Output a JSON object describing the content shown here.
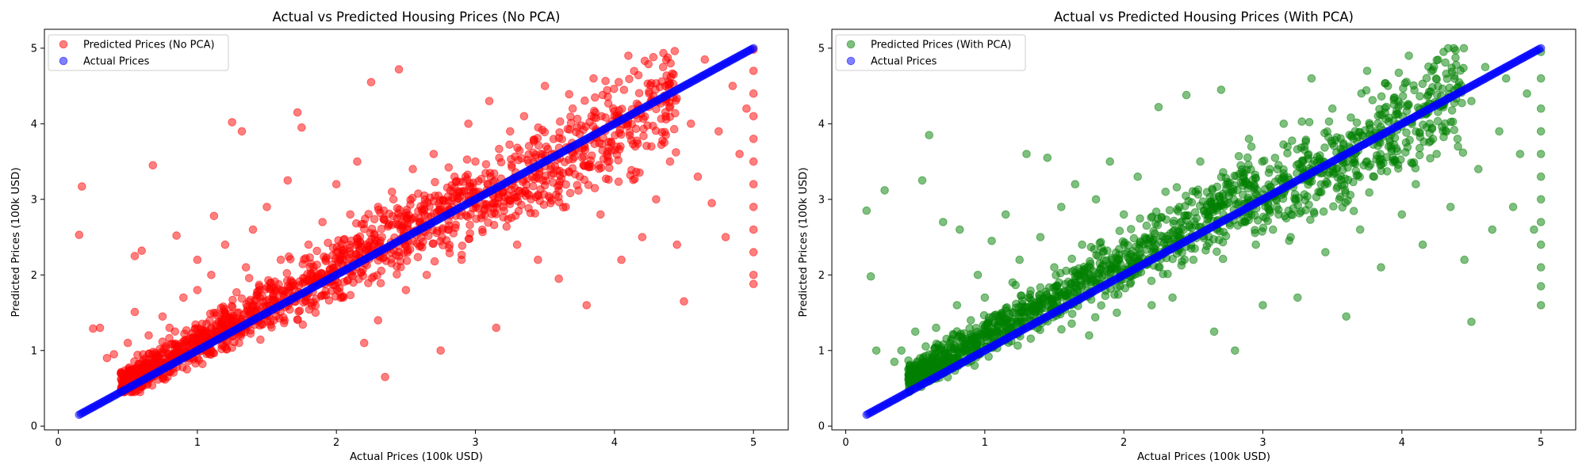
{
  "charts": [
    {
      "title": "Actual vs Predicted Housing Prices (No PCA)",
      "xlabel": "Actual Prices (100k USD)",
      "ylabel": "Predicted Prices (100k USD)",
      "x_ticks": [
        "0",
        "1",
        "2",
        "3",
        "4",
        "5"
      ],
      "y_ticks": [
        "0",
        "1",
        "2",
        "3",
        "4",
        "5"
      ],
      "legend": [
        "Predicted Prices (No PCA)",
        "Actual Prices"
      ]
    },
    {
      "title": "Actual vs Predicted Housing Prices (With PCA)",
      "xlabel": "Actual Prices (100k USD)",
      "ylabel": "Predicted Prices (100k USD)",
      "x_ticks": [
        "0",
        "1",
        "2",
        "3",
        "4",
        "5"
      ],
      "y_ticks": [
        "0",
        "1",
        "2",
        "3",
        "4",
        "5"
      ],
      "legend": [
        "Predicted Prices (With PCA)",
        "Actual Prices"
      ]
    }
  ],
  "chart_data": [
    {
      "type": "scatter",
      "title": "Actual vs Predicted Housing Prices (No PCA)",
      "xlabel": "Actual Prices (100k USD)",
      "ylabel": "Predicted Prices (100k USD)",
      "xlim": [
        -0.1,
        5.25
      ],
      "ylim": [
        -0.05,
        5.25
      ],
      "grid": false,
      "legend_position": "top-left",
      "series": [
        {
          "name": "Predicted Prices (No PCA)",
          "color": "#ff0000",
          "alpha": 0.5,
          "points": [
            [
              0.15,
              2.53
            ],
            [
              0.17,
              3.17
            ],
            [
              0.25,
              1.29
            ],
            [
              0.3,
              1.3
            ],
            [
              0.35,
              0.9
            ],
            [
              0.4,
              0.95
            ],
            [
              0.45,
              0.7
            ],
            [
              0.5,
              1.1
            ],
            [
              0.55,
              1.51
            ],
            [
              0.55,
              2.25
            ],
            [
              0.6,
              2.32
            ],
            [
              0.65,
              1.2
            ],
            [
              0.68,
              3.45
            ],
            [
              0.7,
              0.9
            ],
            [
              0.75,
              1.45
            ],
            [
              0.8,
              1.3
            ],
            [
              0.85,
              0.95
            ],
            [
              0.85,
              2.52
            ],
            [
              0.9,
              1.7
            ],
            [
              0.95,
              1.0
            ],
            [
              1.0,
              1.8
            ],
            [
              1.0,
              2.2
            ],
            [
              1.05,
              1.25
            ],
            [
              1.1,
              1.3
            ],
            [
              1.1,
              2.0
            ],
            [
              1.12,
              2.78
            ],
            [
              1.2,
              1.5
            ],
            [
              1.2,
              2.4
            ],
            [
              1.25,
              4.02
            ],
            [
              1.3,
              1.1
            ],
            [
              1.32,
              3.9
            ],
            [
              1.35,
              2.1
            ],
            [
              1.4,
              1.6
            ],
            [
              1.4,
              2.6
            ],
            [
              1.45,
              1.7
            ],
            [
              1.5,
              2.9
            ],
            [
              1.55,
              1.4
            ],
            [
              1.6,
              2.2
            ],
            [
              1.65,
              3.25
            ],
            [
              1.7,
              1.8
            ],
            [
              1.72,
              4.15
            ],
            [
              1.75,
              3.95
            ],
            [
              1.8,
              2.4
            ],
            [
              1.85,
              1.5
            ],
            [
              1.9,
              2.7
            ],
            [
              1.95,
              1.9
            ],
            [
              2.0,
              2.3
            ],
            [
              2.0,
              3.2
            ],
            [
              2.05,
              1.7
            ],
            [
              2.1,
              2.8
            ],
            [
              2.15,
              3.5
            ],
            [
              2.2,
              1.1
            ],
            [
              2.2,
              2.2
            ],
            [
              2.25,
              4.55
            ],
            [
              2.3,
              2.9
            ],
            [
              2.3,
              1.4
            ],
            [
              2.35,
              0.65
            ],
            [
              2.4,
              3.1
            ],
            [
              2.45,
              2.3
            ],
            [
              2.45,
              4.72
            ],
            [
              2.5,
              1.8
            ],
            [
              2.55,
              3.4
            ],
            [
              2.6,
              2.7
            ],
            [
              2.65,
              2.0
            ],
            [
              2.7,
              3.6
            ],
            [
              2.75,
              1.0
            ],
            [
              2.8,
              2.9
            ],
            [
              2.85,
              3.3
            ],
            [
              2.9,
              2.2
            ],
            [
              2.95,
              4.0
            ],
            [
              3.0,
              3.5
            ],
            [
              3.05,
              2.6
            ],
            [
              3.1,
              4.3
            ],
            [
              3.15,
              1.3
            ],
            [
              3.2,
              3.1
            ],
            [
              3.25,
              3.9
            ],
            [
              3.3,
              2.4
            ],
            [
              3.35,
              4.1
            ],
            [
              3.4,
              3.0
            ],
            [
              3.45,
              2.2
            ],
            [
              3.5,
              4.5
            ],
            [
              3.55,
              3.6
            ],
            [
              3.6,
              1.95
            ],
            [
              3.65,
              2.9
            ],
            [
              3.7,
              4.2
            ],
            [
              3.75,
              3.3
            ],
            [
              3.8,
              1.6
            ],
            [
              3.85,
              4.6
            ],
            [
              3.9,
              2.8
            ],
            [
              3.95,
              3.5
            ],
            [
              4.0,
              4.1
            ],
            [
              4.05,
              2.2
            ],
            [
              4.1,
              4.9
            ],
            [
              4.15,
              3.7
            ],
            [
              4.2,
              2.5
            ],
            [
              4.25,
              4.4
            ],
            [
              4.3,
              3.0
            ],
            [
              4.35,
              4.75
            ],
            [
              4.4,
              3.5
            ],
            [
              4.45,
              2.4
            ],
            [
              4.5,
              1.65
            ],
            [
              4.55,
              4.0
            ],
            [
              4.6,
              3.3
            ],
            [
              4.65,
              4.85
            ],
            [
              4.7,
              2.95
            ],
            [
              4.75,
              3.9
            ],
            [
              4.8,
              2.5
            ],
            [
              4.85,
              4.5
            ],
            [
              4.9,
              3.6
            ],
            [
              4.95,
              4.2
            ],
            [
              5.0,
              4.98
            ],
            [
              5.0,
              4.7
            ],
            [
              5.0,
              4.4
            ],
            [
              5.0,
              4.1
            ],
            [
              5.0,
              3.8
            ],
            [
              5.0,
              3.5
            ],
            [
              5.0,
              3.2
            ],
            [
              5.0,
              2.9
            ],
            [
              5.0,
              2.6
            ],
            [
              5.0,
              2.3
            ],
            [
              5.0,
              2.0
            ],
            [
              5.0,
              1.88
            ]
          ]
        },
        {
          "name": "Actual Prices",
          "color": "#0000ff",
          "alpha": 0.5,
          "line": {
            "from": [
              0.15,
              0.15
            ],
            "to": [
              5.0,
              5.0
            ]
          }
        }
      ]
    },
    {
      "type": "scatter",
      "title": "Actual vs Predicted Housing Prices (With PCA)",
      "xlabel": "Actual Prices (100k USD)",
      "ylabel": "Predicted Prices (100k USD)",
      "xlim": [
        -0.1,
        5.25
      ],
      "ylim": [
        -0.05,
        5.25
      ],
      "grid": false,
      "legend_position": "top-left",
      "series": [
        {
          "name": "Predicted Prices (With PCA)",
          "color": "#008000",
          "alpha": 0.5,
          "points": [
            [
              0.15,
              2.85
            ],
            [
              0.18,
              1.98
            ],
            [
              0.22,
              1.0
            ],
            [
              0.28,
              3.12
            ],
            [
              0.35,
              0.85
            ],
            [
              0.4,
              1.0
            ],
            [
              0.45,
              0.75
            ],
            [
              0.5,
              1.25
            ],
            [
              0.55,
              3.25
            ],
            [
              0.6,
              3.85
            ],
            [
              0.65,
              1.3
            ],
            [
              0.7,
              2.7
            ],
            [
              0.75,
              1.1
            ],
            [
              0.8,
              1.6
            ],
            [
              0.82,
              2.6
            ],
            [
              0.9,
              1.4
            ],
            [
              0.95,
              2.0
            ],
            [
              1.0,
              1.7
            ],
            [
              1.05,
              2.45
            ],
            [
              1.1,
              1.1
            ],
            [
              1.15,
              2.8
            ],
            [
              1.2,
              1.9
            ],
            [
              1.25,
              2.2
            ],
            [
              1.3,
              3.6
            ],
            [
              1.35,
              1.6
            ],
            [
              1.4,
              2.5
            ],
            [
              1.45,
              3.55
            ],
            [
              1.5,
              2.1
            ],
            [
              1.55,
              2.9
            ],
            [
              1.6,
              1.8
            ],
            [
              1.65,
              3.2
            ],
            [
              1.7,
              2.4
            ],
            [
              1.75,
              1.2
            ],
            [
              1.8,
              3.0
            ],
            [
              1.85,
              2.3
            ],
            [
              1.9,
              3.5
            ],
            [
              1.95,
              1.5
            ],
            [
              2.0,
              2.8
            ],
            [
              2.05,
              1.9
            ],
            [
              2.1,
              3.3
            ],
            [
              2.15,
              2.5
            ],
            [
              2.2,
              1.6
            ],
            [
              2.25,
              4.22
            ],
            [
              2.3,
              3.1
            ],
            [
              2.35,
              1.7
            ],
            [
              2.4,
              2.9
            ],
            [
              2.45,
              4.38
            ],
            [
              2.5,
              2.2
            ],
            [
              2.55,
              3.5
            ],
            [
              2.6,
              2.6
            ],
            [
              2.65,
              1.25
            ],
            [
              2.7,
              4.45
            ],
            [
              2.75,
              3.2
            ],
            [
              2.8,
              1.0
            ],
            [
              2.85,
              2.8
            ],
            [
              2.9,
              3.8
            ],
            [
              2.95,
              2.4
            ],
            [
              3.0,
              1.6
            ],
            [
              3.05,
              3.4
            ],
            [
              3.1,
              2.9
            ],
            [
              3.15,
              4.0
            ],
            [
              3.2,
              2.5
            ],
            [
              3.25,
              1.7
            ],
            [
              3.3,
              3.7
            ],
            [
              3.35,
              4.6
            ],
            [
              3.4,
              3.1
            ],
            [
              3.45,
              2.3
            ],
            [
              3.5,
              4.2
            ],
            [
              3.55,
              3.0
            ],
            [
              3.6,
              1.45
            ],
            [
              3.65,
              3.8
            ],
            [
              3.7,
              2.6
            ],
            [
              3.75,
              4.7
            ],
            [
              3.8,
              3.3
            ],
            [
              3.85,
              2.1
            ],
            [
              3.9,
              4.5
            ],
            [
              3.95,
              3.5
            ],
            [
              4.0,
              2.8
            ],
            [
              4.05,
              4.9
            ],
            [
              4.1,
              3.2
            ],
            [
              4.15,
              2.4
            ],
            [
              4.2,
              4.0
            ],
            [
              4.25,
              3.6
            ],
            [
              4.3,
              4.95
            ],
            [
              4.35,
              2.9
            ],
            [
              4.4,
              3.8
            ],
            [
              4.45,
              2.2
            ],
            [
              4.5,
              4.3
            ],
            [
              4.5,
              1.38
            ],
            [
              4.55,
              3.4
            ],
            [
              4.6,
              4.75
            ],
            [
              4.65,
              2.6
            ],
            [
              4.7,
              3.9
            ],
            [
              4.75,
              4.6
            ],
            [
              4.8,
              2.9
            ],
            [
              4.85,
              3.6
            ],
            [
              4.9,
              4.4
            ],
            [
              4.95,
              2.6
            ],
            [
              5.0,
              4.95
            ],
            [
              5.0,
              4.6
            ],
            [
              5.0,
              4.2
            ],
            [
              5.0,
              3.9
            ],
            [
              5.0,
              3.6
            ],
            [
              5.0,
              3.3
            ],
            [
              5.0,
              3.0
            ],
            [
              5.0,
              2.7
            ],
            [
              5.0,
              2.4
            ],
            [
              5.0,
              2.1
            ],
            [
              5.0,
              1.85
            ],
            [
              5.0,
              1.6
            ]
          ]
        },
        {
          "name": "Actual Prices",
          "color": "#0000ff",
          "alpha": 0.5,
          "line": {
            "from": [
              0.15,
              0.15
            ],
            "to": [
              5.0,
              5.0
            ]
          }
        }
      ]
    }
  ]
}
